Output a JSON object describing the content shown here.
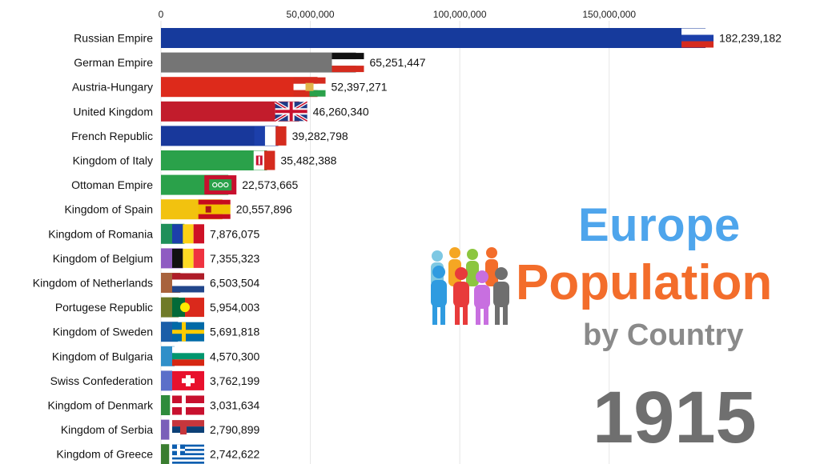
{
  "title": {
    "line1": "Europe",
    "line2": "Population",
    "line3": "by Country",
    "year": "1915"
  },
  "colors": {
    "title_blue": "#4ea5ec",
    "title_orange": "#f36d2b",
    "title_gray": "#8a8a8a",
    "year_gray": "#6f6f6f"
  },
  "chart_data": {
    "type": "bar",
    "orientation": "horizontal",
    "xlim": [
      0,
      190000000
    ],
    "xticks": [
      0,
      50000000,
      100000000,
      150000000
    ],
    "xtick_labels": [
      "0",
      "50,000,000",
      "100,000,000",
      "150,000,000"
    ],
    "grid": true,
    "categories": [
      "Russian Empire",
      "German Empire",
      "Austria-Hungary",
      "United Kingdom",
      "French Republic",
      "Kingdom of Italy",
      "Ottoman Empire",
      "Kingdom of Spain",
      "Kingdom of Romania",
      "Kingdom of Belgium",
      "Kingdom of Netherlands",
      "Portugese Republic",
      "Kingdom of Sweden",
      "Kingdom of Bulgaria",
      "Swiss Confederation",
      "Kingdom of Denmark",
      "Kingdom of Serbia",
      "Kingdom of Greece"
    ],
    "values": [
      182239182,
      65251447,
      52397271,
      46260340,
      39282798,
      35482388,
      22573665,
      20557896,
      7876075,
      7355323,
      6503504,
      5954003,
      5691818,
      4570300,
      3762199,
      3031634,
      2790899,
      2742622
    ],
    "value_labels": [
      "182,239,182",
      "65,251,447",
      "52,397,271",
      "46,260,340",
      "39,282,798",
      "35,482,388",
      "22,573,665",
      "20,557,896",
      "7,876,075",
      "7,355,323",
      "6,503,504",
      "5,954,003",
      "5,691,818",
      "4,570,300",
      "3,762,199",
      "3,031,634",
      "2,790,899",
      "2,742,622"
    ],
    "bar_colors": [
      "#163a9c",
      "#757575",
      "#dd2a1b",
      "#c21c2c",
      "#18389b",
      "#2aa14a",
      "#2aa14a",
      "#f2c20f",
      "#1f8f5a",
      "#8f5cc2",
      "#a8623c",
      "#6f7a28",
      "#1a5ea8",
      "#2f8fc9",
      "#5b6fc9",
      "#2f8b3c",
      "#7a5fb9",
      "#3a7d30"
    ],
    "flags": [
      "russia-flag",
      "german-empire-flag",
      "austria-hungary-flag",
      "union-jack-flag",
      "france-flag",
      "kingdom-of-italy-flag",
      "ottoman-flag",
      "spain-flag",
      "romania-flag",
      "belgium-flag",
      "netherlands-flag",
      "portugal-flag",
      "sweden-flag",
      "bulgaria-flag",
      "switzerland-flag",
      "denmark-flag",
      "serbia-flag",
      "greece-flag"
    ]
  }
}
